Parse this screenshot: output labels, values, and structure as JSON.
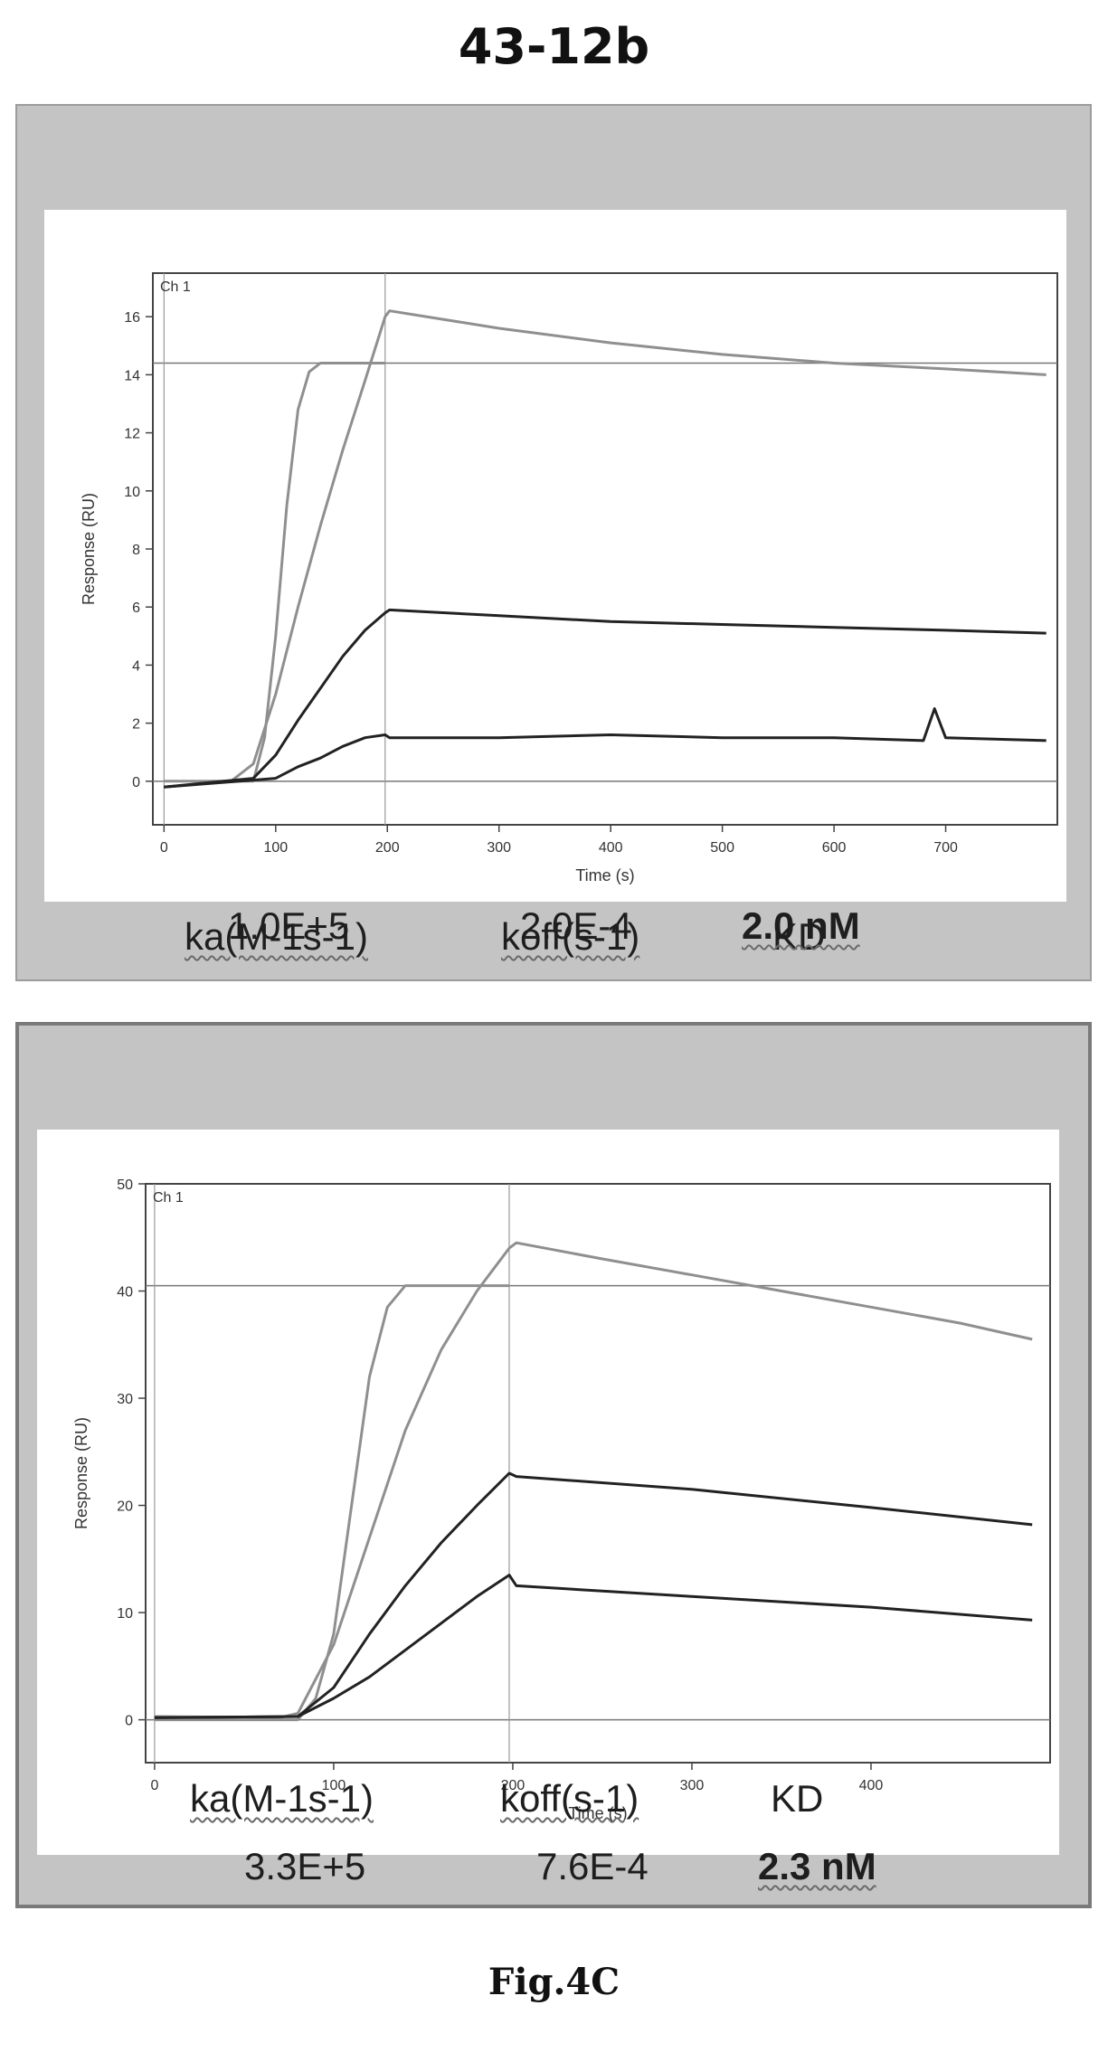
{
  "title": "43-12b",
  "figure_caption": "Fig.4C",
  "panels": [
    {
      "kinetics": {
        "headers": [
          "ka(M-1s-1)",
          "koff(s-1)",
          "KD"
        ],
        "values": [
          "1.0E+5",
          "2.0E-4",
          "2.0 nM"
        ]
      }
    },
    {
      "kinetics": {
        "headers": [
          "ka(M-1s-1)",
          "koff(s-1)",
          "KD"
        ],
        "values": [
          "3.3E+5",
          "7.6E-4",
          "2.3 nM"
        ]
      }
    }
  ],
  "chart_data": [
    {
      "type": "line",
      "channel_label": "Ch 1",
      "xlabel": "Time (s)",
      "ylabel": "Response (RU)",
      "xlim": [
        -10,
        800
      ],
      "ylim": [
        -1.5,
        17.5
      ],
      "x_ticks": [
        0,
        100,
        200,
        300,
        400,
        500,
        600,
        700
      ],
      "y_ticks": [
        0,
        2,
        4,
        6,
        8,
        10,
        12,
        14,
        16
      ],
      "vertical_markers": [
        0,
        198
      ],
      "horizontal_markers": [
        14.4,
        0
      ],
      "grid": false,
      "legend": "none",
      "series": [
        {
          "color": "#8f8f8f",
          "x": [
            0,
            80,
            90,
            100,
            110,
            120,
            130,
            140,
            150,
            160,
            198
          ],
          "y": [
            0,
            0,
            1.5,
            5,
            9.5,
            12.8,
            14.1,
            14.4,
            14.4,
            14.4,
            14.4
          ]
        },
        {
          "color": "#8f8f8f",
          "x": [
            0,
            60,
            80,
            100,
            120,
            140,
            160,
            180,
            198,
            202,
            300,
            400,
            500,
            600,
            700,
            790
          ],
          "y": [
            -0.2,
            0,
            0.6,
            3,
            6,
            8.8,
            11.4,
            13.8,
            16,
            16.2,
            15.6,
            15.1,
            14.7,
            14.4,
            14.2,
            14
          ]
        },
        {
          "color": "#222222",
          "x": [
            0,
            80,
            100,
            120,
            140,
            160,
            180,
            198,
            202,
            300,
            400,
            500,
            600,
            700,
            790
          ],
          "y": [
            -0.2,
            0.1,
            0.9,
            2.1,
            3.2,
            4.3,
            5.2,
            5.8,
            5.9,
            5.7,
            5.5,
            5.4,
            5.3,
            5.2,
            5.1
          ]
        },
        {
          "color": "#222222",
          "x": [
            0,
            100,
            120,
            140,
            160,
            180,
            198,
            202,
            300,
            400,
            500,
            600,
            680,
            690,
            700,
            790
          ],
          "y": [
            -0.2,
            0.1,
            0.5,
            0.8,
            1.2,
            1.5,
            1.6,
            1.5,
            1.5,
            1.6,
            1.5,
            1.5,
            1.4,
            2.5,
            1.5,
            1.4
          ]
        }
      ]
    },
    {
      "type": "line",
      "channel_label": "Ch 1",
      "xlabel": "Time (s)",
      "ylabel": "Response (RU)",
      "xlim": [
        -5,
        500
      ],
      "ylim": [
        -4,
        50
      ],
      "x_ticks": [
        0,
        100,
        200,
        300,
        400
      ],
      "y_ticks": [
        0,
        10,
        20,
        30,
        40,
        50
      ],
      "vertical_markers": [
        0,
        198
      ],
      "horizontal_markers": [
        40.5,
        0
      ],
      "grid": false,
      "legend": "none",
      "series": [
        {
          "color": "#8f8f8f",
          "x": [
            0,
            80,
            90,
            100,
            110,
            120,
            130,
            140,
            150,
            198
          ],
          "y": [
            0,
            0,
            2,
            8,
            20,
            32,
            38.5,
            40.5,
            40.5,
            40.5
          ]
        },
        {
          "color": "#8f8f8f",
          "x": [
            0,
            70,
            80,
            100,
            120,
            140,
            160,
            180,
            198,
            202,
            250,
            300,
            350,
            400,
            450,
            490
          ],
          "y": [
            0.3,
            0.2,
            0.6,
            7,
            17,
            27,
            34.5,
            40,
            44,
            44.5,
            43,
            41.5,
            40,
            38.5,
            37,
            35.5
          ]
        },
        {
          "color": "#222222",
          "x": [
            0,
            80,
            100,
            120,
            140,
            160,
            180,
            198,
            202,
            300,
            400,
            490
          ],
          "y": [
            0.2,
            0.3,
            3,
            8,
            12.5,
            16.5,
            20,
            23,
            22.7,
            21.5,
            19.8,
            18.2
          ]
        },
        {
          "color": "#222222",
          "x": [
            0,
            80,
            100,
            120,
            140,
            160,
            180,
            198,
            202,
            300,
            400,
            490
          ],
          "y": [
            0.2,
            0.3,
            2,
            4,
            6.5,
            9,
            11.5,
            13.5,
            12.5,
            11.5,
            10.5,
            9.3
          ]
        }
      ]
    }
  ]
}
